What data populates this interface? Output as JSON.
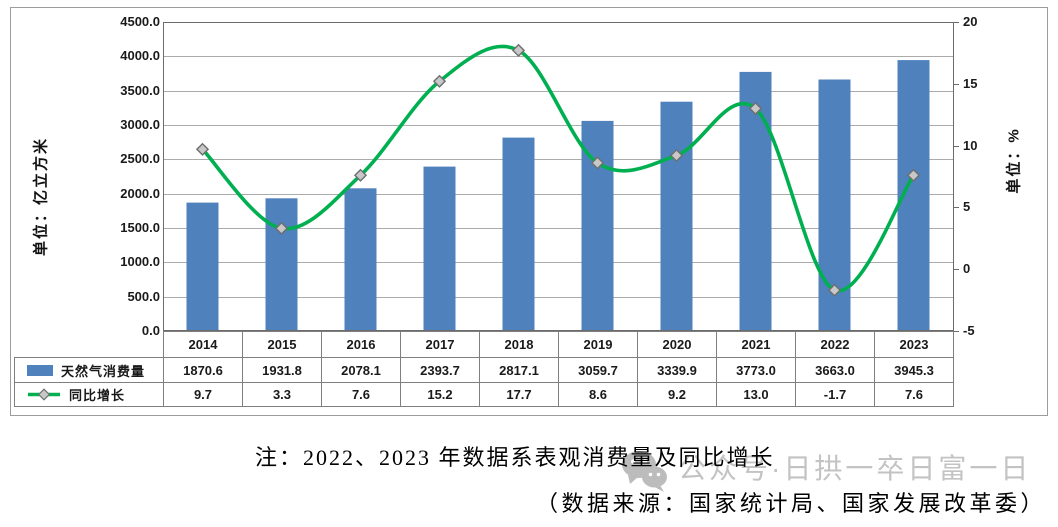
{
  "chart_data": {
    "type": "combo",
    "categories": [
      "2014",
      "2015",
      "2016",
      "2017",
      "2018",
      "2019",
      "2020",
      "2021",
      "2022",
      "2023"
    ],
    "series": [
      {
        "name": "天然气消费量",
        "type": "bar",
        "axis": "left",
        "color": "#4F81BD",
        "values": [
          1870.6,
          1931.8,
          2078.1,
          2393.7,
          2817.1,
          3059.7,
          3339.9,
          3773.0,
          3663.0,
          3945.3
        ]
      },
      {
        "name": "同比增长",
        "type": "line",
        "axis": "right",
        "color": "#00B050",
        "marker": "diamond",
        "marker_fill": "#C8C8C8",
        "marker_stroke": "#6E6E6E",
        "smooth": true,
        "values": [
          9.7,
          3.3,
          7.6,
          15.2,
          17.7,
          8.6,
          9.2,
          13.0,
          -1.7,
          7.6
        ]
      }
    ],
    "left_axis": {
      "title": "单位：亿立方米",
      "min": 0,
      "max": 4500,
      "step": 500,
      "tick_format": "one_decimal"
    },
    "right_axis": {
      "title": "单位：%",
      "min": -5,
      "max": 20,
      "step": 5,
      "tick_format": "integer"
    },
    "grid": true,
    "gridline_color": "#ABABAB",
    "plot_border_color": "#6B6B6B",
    "legend_position": "table-left"
  },
  "notes": {
    "line1": "注：2022、2023 年数据系表观消费量及同比增长",
    "line2": "（数据来源：国家统计局、国家发展改革委）"
  },
  "watermark": {
    "icon": "wechat-icon",
    "text": "公众号·日拱一卒日富一日",
    "color": "#c3c3c3"
  }
}
